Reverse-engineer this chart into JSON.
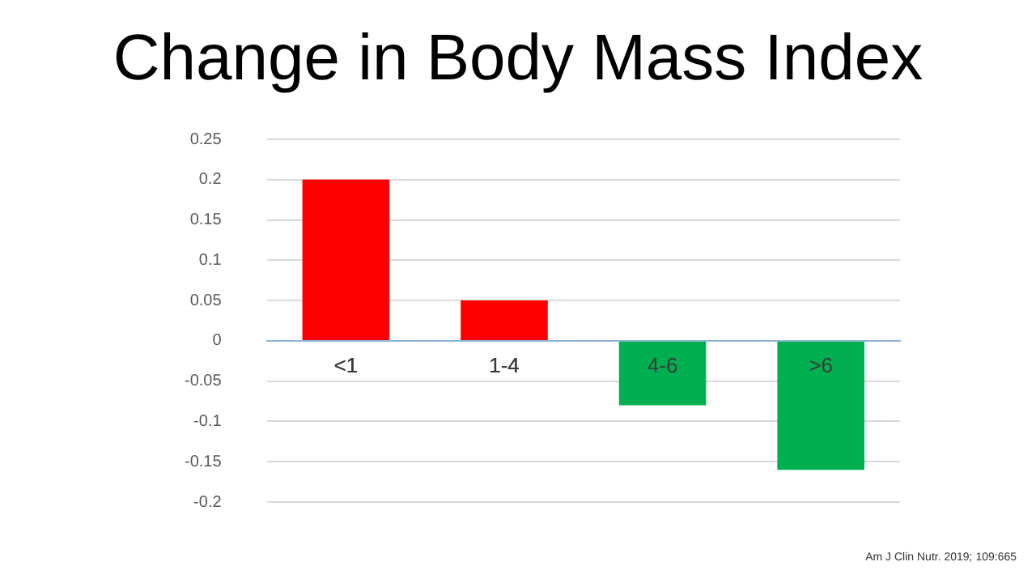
{
  "chart_data": {
    "type": "bar",
    "title": "Change in Body Mass Index",
    "categories": [
      "<1",
      "1-4",
      "4-6",
      ">6"
    ],
    "values": [
      0.2,
      0.05,
      -0.08,
      -0.16
    ],
    "colors": [
      "#ff0000",
      "#ff0000",
      "#00b050",
      "#00b050"
    ],
    "ylim": [
      -0.2,
      0.25
    ],
    "yticks": [
      -0.2,
      -0.15,
      -0.1,
      -0.05,
      0,
      0.05,
      0.1,
      0.15,
      0.2,
      0.25
    ],
    "grid": "y",
    "legend": false,
    "annotations": [
      "Am J Clin Nutr. 2019; 109:665"
    ]
  }
}
